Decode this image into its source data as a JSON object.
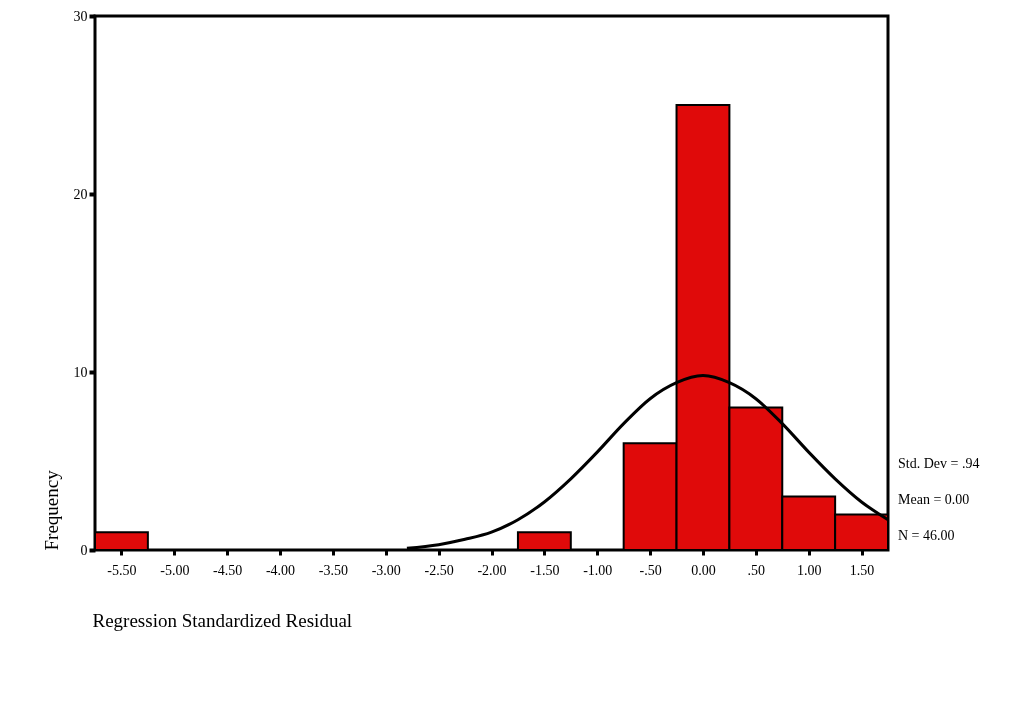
{
  "chart_data": {
    "type": "histogram",
    "xlabel": "Regression Standardized Residual",
    "ylabel": "Frequency",
    "bins": [
      -5.75,
      -5.25,
      -4.75,
      -4.25,
      -3.75,
      -3.25,
      -2.75,
      -2.25,
      -1.75,
      -1.25,
      -0.75,
      -0.25,
      0.25,
      0.75,
      1.25,
      1.75
    ],
    "series": [
      {
        "color": "#e00a0a",
        "values": [
          1,
          0,
          0,
          0,
          0,
          0,
          0,
          0,
          1,
          0,
          6,
          25,
          8,
          3,
          2
        ]
      },
      {
        "type": "line",
        "color": "#000000",
        "x": [
          -2.8,
          -2.5,
          -2.25,
          -2,
          -1.75,
          -1.5,
          -1.25,
          -1,
          -0.75,
          -0.5,
          -0.25,
          0,
          0.25,
          0.5,
          0.75,
          1,
          1.25,
          1.5,
          1.75
        ],
        "values": [
          0.1,
          0.3,
          0.6,
          1.0,
          1.7,
          2.7,
          4.0,
          5.5,
          7.1,
          8.5,
          9.4,
          9.8,
          9.4,
          8.5,
          7.1,
          5.5,
          4.0,
          2.7,
          1.7
        ]
      }
    ],
    "xlim": [
      -5.75,
      1.75
    ],
    "xticks": [
      {
        "value": -5.5,
        "label": "-5.50"
      },
      {
        "value": -5,
        "label": "-5.00"
      },
      {
        "value": -4.5,
        "label": "-4.50"
      },
      {
        "value": -4,
        "label": "-4.00"
      },
      {
        "value": -3.5,
        "label": "-3.50"
      },
      {
        "value": -3,
        "label": "-3.00"
      },
      {
        "value": -2.5,
        "label": "-2.50"
      },
      {
        "value": -2,
        "label": "-2.00"
      },
      {
        "value": -1.5,
        "label": "-1.50"
      },
      {
        "value": -1,
        "label": "-1.00"
      },
      {
        "value": -0.5,
        "label": "-.50"
      },
      {
        "value": 0,
        "label": "0.00"
      },
      {
        "value": 0.5,
        "label": ".50"
      },
      {
        "value": 1,
        "label": "1.00"
      },
      {
        "value": 1.5,
        "label": "1.50"
      }
    ],
    "ylim": [
      0,
      30
    ],
    "yticks": [
      0,
      10,
      20,
      30
    ],
    "grid": false,
    "annotations": [
      "Std. Dev = .94",
      "Mean = 0.00",
      "N = 46.00"
    ]
  }
}
